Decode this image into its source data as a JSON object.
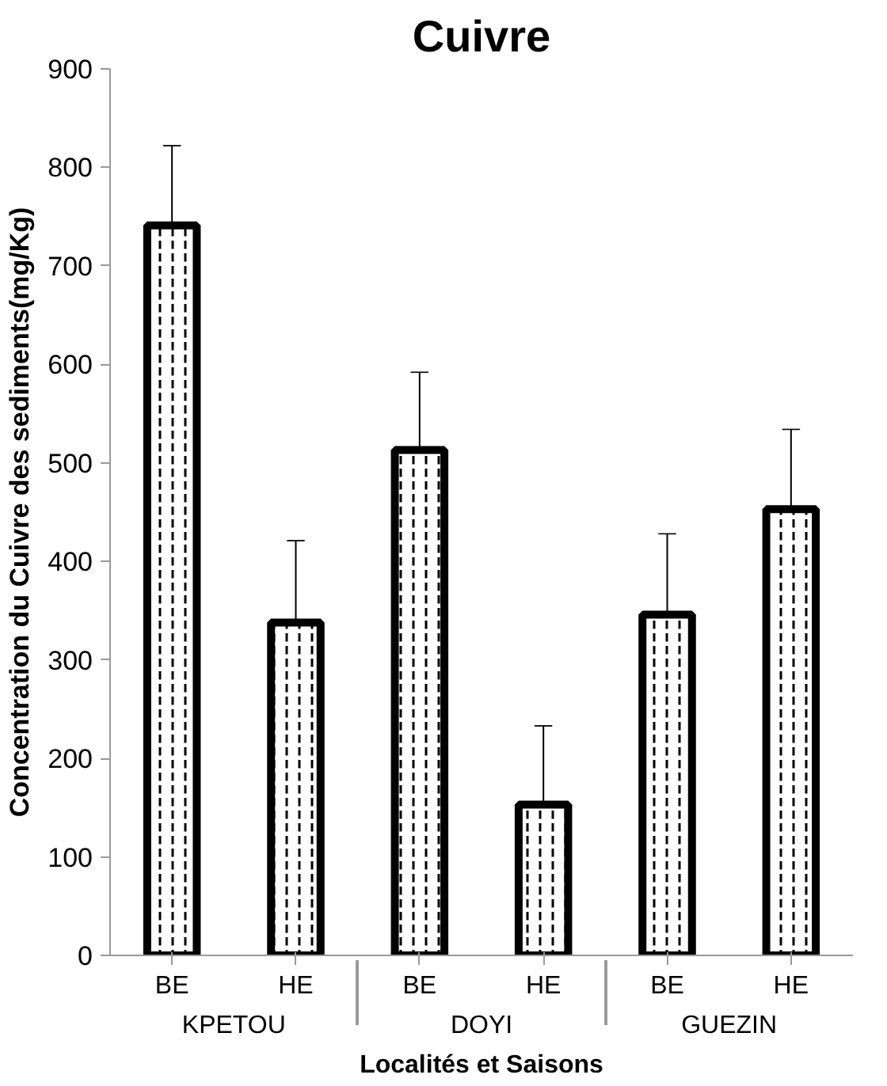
{
  "chart_data": {
    "type": "bar",
    "title": "Cuivre",
    "xlabel": "Localités et Saisons",
    "ylabel": "Concentration du Cuivre des sediments(mg/Kg)",
    "categories": [
      "BE",
      "HE",
      "BE",
      "HE",
      "BE",
      "HE"
    ],
    "annotations": [
      "KPETOU",
      "DOYI",
      "GUEZIN"
    ],
    "values": [
      741,
      338,
      513,
      153,
      346,
      453
    ],
    "errors": [
      [
        741,
        822
      ],
      [
        338,
        421
      ],
      [
        513,
        592
      ],
      [
        153,
        233
      ],
      [
        346,
        428
      ],
      [
        453,
        534
      ]
    ],
    "color": "#000000",
    "ylim": [
      0,
      900
    ],
    "yticks": [
      0,
      100,
      200,
      300,
      400,
      500,
      600,
      700,
      800,
      900
    ],
    "grid": false
  }
}
